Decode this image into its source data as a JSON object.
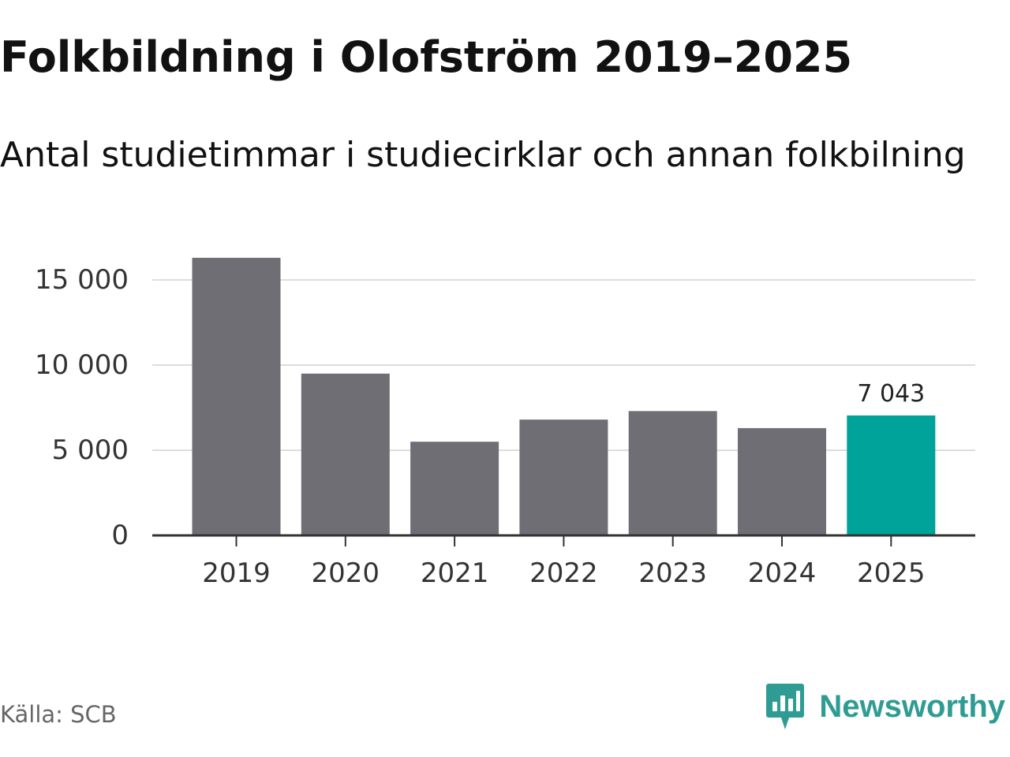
{
  "header": {
    "title": "Folkbildning i Olofström 2019–2025",
    "subtitle": "Antal studietimmar i studiecirklar och annan folkbilning"
  },
  "footer": {
    "source": "Källa: SCB",
    "brand": "Newsworthy",
    "brand_icon": "newsworthy-chart-icon"
  },
  "colors": {
    "bar": "#6f6e75",
    "highlight": "#00a39a",
    "gridline": "#dddddd",
    "axis": "#333333",
    "brand": "#2f9c93"
  },
  "chart_data": {
    "type": "bar",
    "title": "Folkbildning i Olofström 2019–2025",
    "subtitle": "Antal studietimmar i studiecirklar och annan folkbilning",
    "xlabel": "",
    "ylabel": "",
    "categories": [
      "2019",
      "2020",
      "2021",
      "2022",
      "2023",
      "2024",
      "2025"
    ],
    "values": [
      16300,
      9500,
      5500,
      6800,
      7300,
      6300,
      7043
    ],
    "ylim": [
      0,
      15000
    ],
    "yticks": [
      0,
      5000,
      10000,
      15000
    ],
    "ytick_labels": [
      "0",
      "5 000",
      "10 000",
      "15 000"
    ],
    "grid": true,
    "highlight_index": 6,
    "annotations": [
      {
        "category": "2025",
        "value": 7043,
        "label": "7 043"
      }
    ]
  }
}
